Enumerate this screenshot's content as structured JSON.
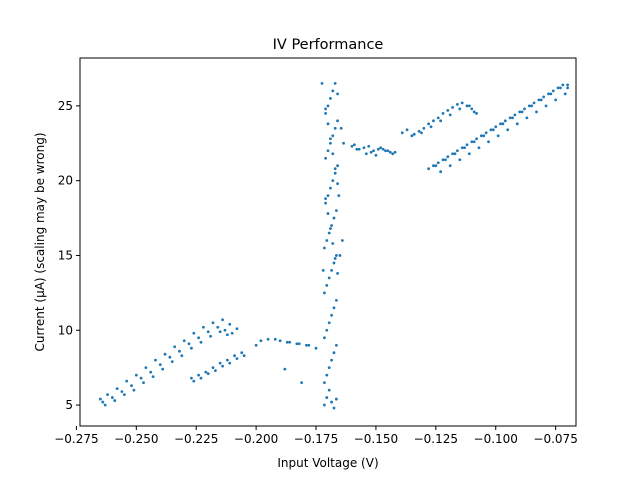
{
  "chart_data": {
    "type": "scatter",
    "title": "IV Performance",
    "xlabel": "Input Voltage (V)",
    "ylabel": "Current (µA) (scaling may be wrong)",
    "xlim": [
      -0.2735,
      -0.0665
    ],
    "ylim": [
      3.6,
      28.2
    ],
    "xticks": [
      -0.275,
      -0.25,
      -0.225,
      -0.2,
      -0.175,
      -0.15,
      -0.125,
      -0.1,
      -0.075
    ],
    "xtick_labels": [
      "−0.275",
      "−0.250",
      "−0.225",
      "−0.200",
      "−0.175",
      "−0.150",
      "−0.125",
      "−0.100",
      "−0.075"
    ],
    "yticks": [
      5,
      10,
      15,
      20,
      25
    ],
    "ytick_labels": [
      "5",
      "10",
      "15",
      "20",
      "25"
    ],
    "grid": false,
    "legend": "none",
    "marker_color": "#1f77b4",
    "series": [
      {
        "x": [
          -0.265,
          -0.262,
          -0.258,
          -0.254,
          -0.25,
          -0.246,
          -0.242,
          -0.238,
          -0.234,
          -0.23,
          -0.226,
          -0.222,
          -0.218,
          -0.214,
          -0.211,
          -0.208,
          -0.264,
          -0.26,
          -0.256,
          -0.252,
          -0.248,
          -0.244,
          -0.24,
          -0.236,
          -0.232,
          -0.228,
          -0.224,
          -0.22,
          -0.216,
          -0.213,
          -0.21,
          -0.263,
          -0.259,
          -0.255,
          -0.251,
          -0.247,
          -0.243,
          -0.239,
          -0.235,
          -0.231,
          -0.227,
          -0.223,
          -0.219,
          -0.215,
          -0.212,
          -0.227,
          -0.224,
          -0.221,
          -0.218,
          -0.215,
          -0.212,
          -0.209,
          -0.206,
          -0.226,
          -0.223,
          -0.22,
          -0.217,
          -0.214,
          -0.211,
          -0.208,
          -0.205,
          -0.2,
          -0.195,
          -0.19,
          -0.186,
          -0.182,
          -0.178,
          -0.175,
          -0.198,
          -0.192,
          -0.187,
          -0.183,
          -0.179,
          -0.188,
          -0.181,
          -0.1715,
          -0.1705,
          -0.1695,
          -0.1685,
          -0.1675,
          -0.1665,
          -0.1715,
          -0.1705,
          -0.1695,
          -0.1685,
          -0.1675,
          -0.1665,
          -0.1715,
          -0.1705,
          -0.1695,
          -0.1685,
          -0.1675,
          -0.1665,
          -0.1715,
          -0.1705,
          -0.1695,
          -0.1685,
          -0.1675,
          -0.1665,
          -0.1715,
          -0.1705,
          -0.1695,
          -0.1685,
          -0.1675,
          -0.1665,
          -0.171,
          -0.17,
          -0.169,
          -0.168,
          -0.167,
          -0.166,
          -0.171,
          -0.17,
          -0.169,
          -0.168,
          -0.167,
          -0.166,
          -0.171,
          -0.17,
          -0.169,
          -0.168,
          -0.167,
          -0.166,
          -0.171,
          -0.17,
          -0.169,
          -0.168,
          -0.167,
          -0.166,
          -0.171,
          -0.17,
          -0.169,
          -0.168,
          -0.167,
          -0.166,
          -0.1725,
          -0.172,
          -0.164,
          -0.165,
          -0.1645,
          -0.1655,
          -0.1635,
          -0.16,
          -0.157,
          -0.154,
          -0.151,
          -0.148,
          -0.145,
          -0.142,
          -0.159,
          -0.155,
          -0.152,
          -0.149,
          -0.146,
          -0.143,
          -0.158,
          -0.153,
          -0.15,
          -0.147,
          -0.144,
          -0.139,
          -0.137,
          -0.134,
          -0.132,
          -0.13,
          -0.128,
          -0.126,
          -0.124,
          -0.122,
          -0.12,
          -0.118,
          -0.116,
          -0.114,
          -0.112,
          -0.11,
          -0.108,
          -0.135,
          -0.131,
          -0.127,
          -0.123,
          -0.119,
          -0.115,
          -0.111,
          -0.109,
          -0.128,
          -0.126,
          -0.124,
          -0.122,
          -0.12,
          -0.118,
          -0.116,
          -0.114,
          -0.112,
          -0.11,
          -0.108,
          -0.106,
          -0.104,
          -0.102,
          -0.1,
          -0.098,
          -0.096,
          -0.094,
          -0.092,
          -0.09,
          -0.088,
          -0.086,
          -0.084,
          -0.082,
          -0.08,
          -0.078,
          -0.076,
          -0.074,
          -0.072,
          -0.07,
          -0.125,
          -0.121,
          -0.117,
          -0.113,
          -0.109,
          -0.105,
          -0.101,
          -0.097,
          -0.093,
          -0.089,
          -0.085,
          -0.081,
          -0.077,
          -0.073,
          -0.07,
          -0.123,
          -0.119,
          -0.115,
          -0.111,
          -0.107,
          -0.103,
          -0.099,
          -0.095,
          -0.091,
          -0.087,
          -0.083,
          -0.079,
          -0.075,
          -0.071
        ],
        "y": [
          5.4,
          5.7,
          6.1,
          6.6,
          7.0,
          7.5,
          8.0,
          8.4,
          8.9,
          9.3,
          9.8,
          10.2,
          10.5,
          10.7,
          10.4,
          10.1,
          5.2,
          5.5,
          5.9,
          6.3,
          6.8,
          7.2,
          7.7,
          8.2,
          8.6,
          9.1,
          9.5,
          9.9,
          10.2,
          10.0,
          9.8,
          5.0,
          5.3,
          5.7,
          6.0,
          6.5,
          6.9,
          7.4,
          7.9,
          8.3,
          8.8,
          9.2,
          9.6,
          9.9,
          9.7,
          6.8,
          7.0,
          7.2,
          7.5,
          7.8,
          8.0,
          8.3,
          8.5,
          6.6,
          6.8,
          7.1,
          7.3,
          7.6,
          7.8,
          8.1,
          8.3,
          9.0,
          9.4,
          9.3,
          9.2,
          9.1,
          9.0,
          8.8,
          9.3,
          9.4,
          9.2,
          9.1,
          9.0,
          7.4,
          6.5,
          5.0,
          5.5,
          6.0,
          5.2,
          4.8,
          5.4,
          6.5,
          7.0,
          7.5,
          8.0,
          8.5,
          9.0,
          9.5,
          10.0,
          10.5,
          11.0,
          11.5,
          12.0,
          12.5,
          13.0,
          13.5,
          14.0,
          14.5,
          15.0,
          15.5,
          16.0,
          16.5,
          17.0,
          17.5,
          18.0,
          18.5,
          19.0,
          19.5,
          20.0,
          20.5,
          21.0,
          21.5,
          22.0,
          22.5,
          23.0,
          23.5,
          24.0,
          24.5,
          25.0,
          25.5,
          26.0,
          26.5,
          25.8,
          24.8,
          23.8,
          22.8,
          21.8,
          20.8,
          19.8,
          18.8,
          17.8,
          16.8,
          15.8,
          14.8,
          13.8,
          26.5,
          14.0,
          16.0,
          15.0,
          23.5,
          19.0,
          22.5,
          22.3,
          22.1,
          21.8,
          22.0,
          22.2,
          22.0,
          21.9,
          22.4,
          22.2,
          21.9,
          22.1,
          22.0,
          21.8,
          22.1,
          22.3,
          21.7,
          22.1,
          21.9,
          23.2,
          23.4,
          23.1,
          23.3,
          23.5,
          23.8,
          24.0,
          24.2,
          24.5,
          24.7,
          24.9,
          25.1,
          25.2,
          25.0,
          24.8,
          24.5,
          23.0,
          23.2,
          23.6,
          24.0,
          24.4,
          24.8,
          25.0,
          24.6,
          20.8,
          21.0,
          21.2,
          21.4,
          21.6,
          21.8,
          22.0,
          22.2,
          22.4,
          22.6,
          22.8,
          23.0,
          23.2,
          23.4,
          23.6,
          23.8,
          24.0,
          24.2,
          24.4,
          24.6,
          24.8,
          25.0,
          25.2,
          25.4,
          25.6,
          25.8,
          26.0,
          26.2,
          26.4,
          26.2,
          21.0,
          21.4,
          21.8,
          22.2,
          22.6,
          23.0,
          23.4,
          23.8,
          24.2,
          24.6,
          25.0,
          25.4,
          25.8,
          26.2,
          26.4,
          20.6,
          21.0,
          21.4,
          21.8,
          22.2,
          22.6,
          23.0,
          23.4,
          23.8,
          24.2,
          24.6,
          25.0,
          25.4,
          25.8
        ]
      }
    ]
  }
}
